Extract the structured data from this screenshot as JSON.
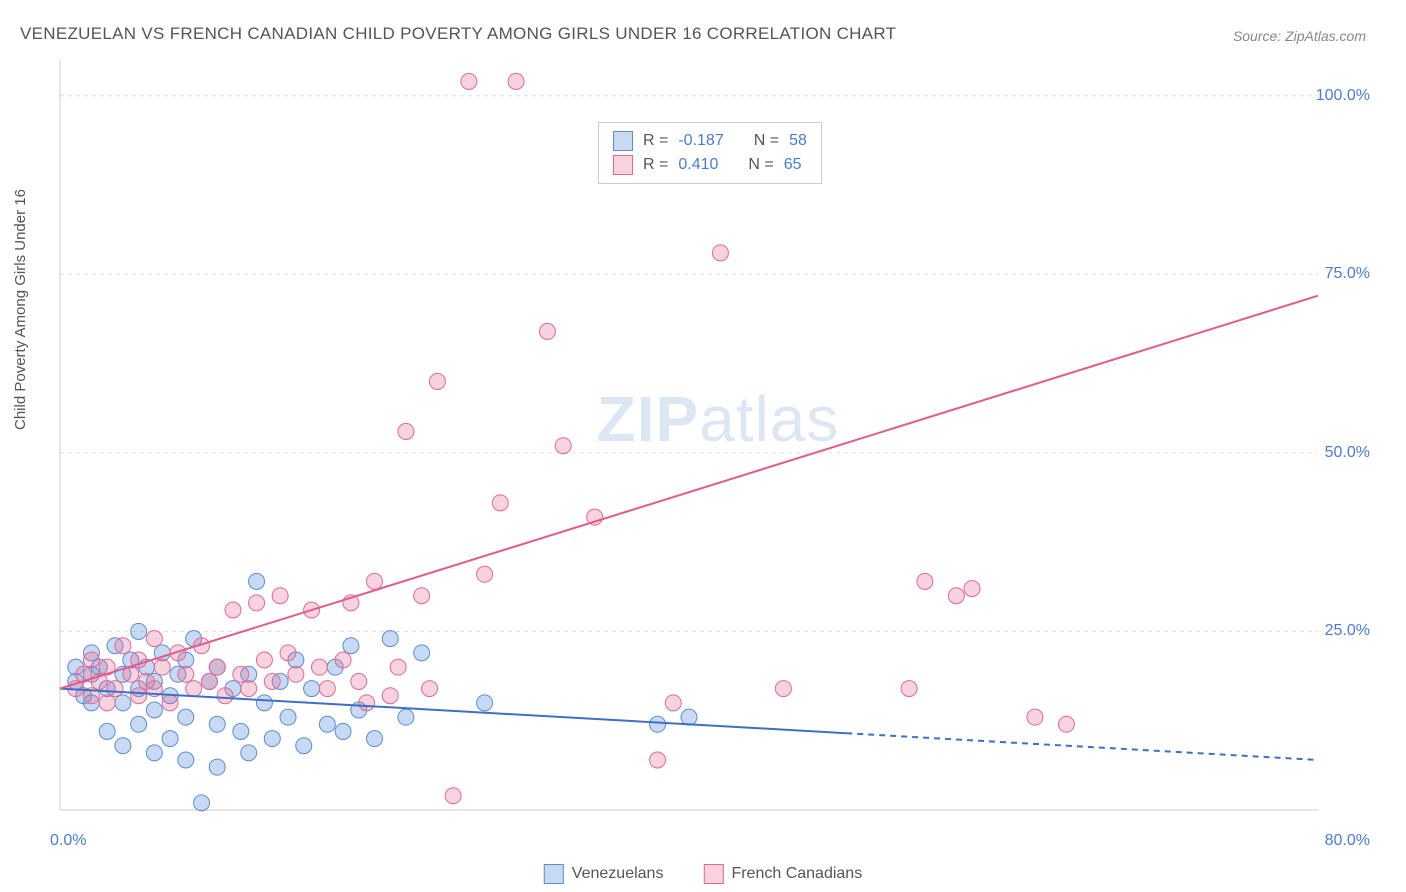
{
  "title": "VENEZUELAN VS FRENCH CANADIAN CHILD POVERTY AMONG GIRLS UNDER 16 CORRELATION CHART",
  "source": "Source: ZipAtlas.com",
  "y_axis_label": "Child Poverty Among Girls Under 16",
  "watermark": {
    "left": "ZIP",
    "right": "atlas"
  },
  "chart": {
    "type": "scatter",
    "background_color": "#ffffff",
    "grid_color": "#dddddd",
    "axis_color": "#cccccc",
    "xlim": [
      0,
      80
    ],
    "ylim": [
      0,
      105
    ],
    "x_ticks": [
      {
        "value": 0,
        "label": "0.0%"
      },
      {
        "value": 80,
        "label": "80.0%"
      }
    ],
    "y_ticks": [
      {
        "value": 25,
        "label": "25.0%"
      },
      {
        "value": 50,
        "label": "50.0%"
      },
      {
        "value": 75,
        "label": "75.0%"
      },
      {
        "value": 100,
        "label": "100.0%"
      }
    ],
    "series": [
      {
        "key": "venezuelans",
        "label": "Venezuelans",
        "fill": "rgba(96,150,220,0.35)",
        "stroke": "#5a8ed0",
        "marker_radius": 8,
        "reg_line": {
          "x1": 0,
          "y1": 17,
          "x2": 80,
          "y2": 7,
          "solid_until_x": 50,
          "color": "#3d6fc9",
          "width": 2
        },
        "R": "-0.187",
        "N": "58",
        "points": [
          [
            1,
            18
          ],
          [
            1,
            20
          ],
          [
            1.5,
            16
          ],
          [
            2,
            15
          ],
          [
            2,
            19
          ],
          [
            2,
            22
          ],
          [
            2.5,
            20
          ],
          [
            3,
            17
          ],
          [
            3,
            11
          ],
          [
            3.5,
            23
          ],
          [
            4,
            19
          ],
          [
            4,
            15
          ],
          [
            4,
            9
          ],
          [
            4.5,
            21
          ],
          [
            5,
            25
          ],
          [
            5,
            17
          ],
          [
            5,
            12
          ],
          [
            5.5,
            20
          ],
          [
            6,
            18
          ],
          [
            6,
            14
          ],
          [
            6,
            8
          ],
          [
            6.5,
            22
          ],
          [
            7,
            16
          ],
          [
            7,
            10
          ],
          [
            7.5,
            19
          ],
          [
            8,
            21
          ],
          [
            8,
            13
          ],
          [
            8,
            7
          ],
          [
            8.5,
            24
          ],
          [
            9,
            1
          ],
          [
            9.5,
            18
          ],
          [
            10,
            20
          ],
          [
            10,
            12
          ],
          [
            10,
            6
          ],
          [
            11,
            17
          ],
          [
            11.5,
            11
          ],
          [
            12,
            19
          ],
          [
            12,
            8
          ],
          [
            12.5,
            32
          ],
          [
            13,
            15
          ],
          [
            13.5,
            10
          ],
          [
            14,
            18
          ],
          [
            14.5,
            13
          ],
          [
            15,
            21
          ],
          [
            15.5,
            9
          ],
          [
            16,
            17
          ],
          [
            17,
            12
          ],
          [
            17.5,
            20
          ],
          [
            18,
            11
          ],
          [
            18.5,
            23
          ],
          [
            19,
            14
          ],
          [
            20,
            10
          ],
          [
            21,
            24
          ],
          [
            22,
            13
          ],
          [
            23,
            22
          ],
          [
            27,
            15
          ],
          [
            38,
            12
          ],
          [
            40,
            13
          ]
        ]
      },
      {
        "key": "french_canadians",
        "label": "French Canadians",
        "fill": "rgba(232,110,150,0.30)",
        "stroke": "#e06a94",
        "marker_radius": 8,
        "reg_line": {
          "x1": 0,
          "y1": 17,
          "x2": 80,
          "y2": 72,
          "solid_until_x": 80,
          "color": "#e45a8a",
          "width": 2
        },
        "R": "0.410",
        "N": "65",
        "points": [
          [
            1,
            17
          ],
          [
            1.5,
            19
          ],
          [
            2,
            16
          ],
          [
            2,
            21
          ],
          [
            2.5,
            18
          ],
          [
            3,
            15
          ],
          [
            3,
            20
          ],
          [
            3.5,
            17
          ],
          [
            4,
            23
          ],
          [
            4.5,
            19
          ],
          [
            5,
            16
          ],
          [
            5,
            21
          ],
          [
            5.5,
            18
          ],
          [
            6,
            24
          ],
          [
            6,
            17
          ],
          [
            6.5,
            20
          ],
          [
            7,
            15
          ],
          [
            7.5,
            22
          ],
          [
            8,
            19
          ],
          [
            8.5,
            17
          ],
          [
            9,
            23
          ],
          [
            9.5,
            18
          ],
          [
            10,
            20
          ],
          [
            10.5,
            16
          ],
          [
            11,
            28
          ],
          [
            11.5,
            19
          ],
          [
            12,
            17
          ],
          [
            12.5,
            29
          ],
          [
            13,
            21
          ],
          [
            13.5,
            18
          ],
          [
            14,
            30
          ],
          [
            14.5,
            22
          ],
          [
            15,
            19
          ],
          [
            16,
            28
          ],
          [
            16.5,
            20
          ],
          [
            17,
            17
          ],
          [
            18,
            21
          ],
          [
            18.5,
            29
          ],
          [
            19,
            18
          ],
          [
            19.5,
            15
          ],
          [
            20,
            32
          ],
          [
            21,
            16
          ],
          [
            21.5,
            20
          ],
          [
            22,
            53
          ],
          [
            23,
            30
          ],
          [
            23.5,
            17
          ],
          [
            24,
            60
          ],
          [
            25,
            2
          ],
          [
            26,
            102
          ],
          [
            27,
            33
          ],
          [
            28,
            43
          ],
          [
            29,
            102
          ],
          [
            31,
            67
          ],
          [
            32,
            51
          ],
          [
            34,
            41
          ],
          [
            38,
            7
          ],
          [
            39,
            15
          ],
          [
            42,
            78
          ],
          [
            55,
            32
          ],
          [
            57,
            30
          ],
          [
            58,
            31
          ],
          [
            62,
            13
          ],
          [
            64,
            12
          ],
          [
            54,
            17
          ],
          [
            46,
            17
          ]
        ]
      }
    ]
  },
  "stats_legend": {
    "rows": [
      {
        "swatch_fill": "rgba(96,150,220,0.35)",
        "swatch_stroke": "#5a8ed0",
        "R_label": "R =",
        "R_val": "-0.187",
        "N_label": "N =",
        "N_val": "58"
      },
      {
        "swatch_fill": "rgba(232,110,150,0.30)",
        "swatch_stroke": "#e06a94",
        "R_label": "R =",
        "R_val": "0.410",
        "N_label": "N =",
        "N_val": "65"
      }
    ]
  },
  "bottom_legend": [
    {
      "swatch_fill": "rgba(96,150,220,0.35)",
      "swatch_stroke": "#5a8ed0",
      "label": "Venezuelans"
    },
    {
      "swatch_fill": "rgba(232,110,150,0.30)",
      "swatch_stroke": "#e06a94",
      "label": "French Canadians"
    }
  ]
}
